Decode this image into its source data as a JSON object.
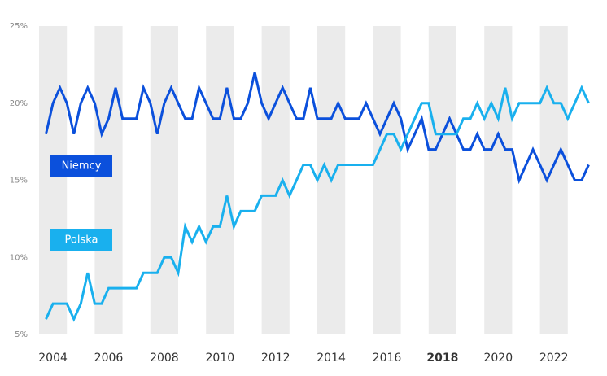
{
  "chart_data": {
    "type": "line",
    "x": [
      2003.75,
      2004,
      2004.25,
      2004.5,
      2004.75,
      2005,
      2005.25,
      2005.5,
      2005.75,
      2006,
      2006.25,
      2006.5,
      2006.75,
      2007,
      2007.25,
      2007.5,
      2007.75,
      2008,
      2008.25,
      2008.5,
      2008.75,
      2009,
      2009.25,
      2009.5,
      2009.75,
      2010,
      2010.25,
      2010.5,
      2010.75,
      2011,
      2011.25,
      2011.5,
      2011.75,
      2012,
      2012.25,
      2012.5,
      2012.75,
      2013,
      2013.25,
      2013.5,
      2013.75,
      2014,
      2014.25,
      2014.5,
      2014.75,
      2015,
      2015.25,
      2015.5,
      2015.75,
      2016,
      2016.25,
      2016.5,
      2016.75,
      2017,
      2017.25,
      2017.5,
      2017.75,
      2018,
      2018.25,
      2018.5,
      2018.75,
      2019,
      2019.25,
      2019.5,
      2019.75,
      2020,
      2020.25,
      2020.5,
      2020.75,
      2021,
      2021.25,
      2021.5,
      2021.75,
      2022,
      2022.25,
      2022.5,
      2022.75,
      2023,
      2023.25
    ],
    "series": [
      {
        "name": "Niemcy",
        "color": "#0b50dc",
        "values": [
          18,
          20,
          21,
          20,
          18,
          20,
          21,
          20,
          18,
          19,
          21,
          19,
          19,
          19,
          21,
          20,
          18,
          20,
          21,
          20,
          19,
          19,
          21,
          20,
          19,
          19,
          21,
          19,
          19,
          20,
          22,
          20,
          19,
          20,
          21,
          20,
          19,
          19,
          21,
          19,
          19,
          19,
          20,
          19,
          19,
          19,
          20,
          19,
          18,
          19,
          20,
          19,
          17,
          18,
          19,
          17,
          17,
          18,
          19,
          18,
          17,
          17,
          18,
          17,
          17,
          18,
          17,
          17,
          15,
          16,
          17,
          16,
          15,
          16,
          17,
          16,
          15,
          15,
          16
        ]
      },
      {
        "name": "Polska",
        "color": "#19b0ee",
        "values": [
          6,
          7,
          7,
          7,
          6,
          7,
          9,
          7,
          7,
          8,
          8,
          8,
          8,
          8,
          9,
          9,
          9,
          10,
          10,
          9,
          12,
          11,
          12,
          11,
          12,
          12,
          14,
          12,
          13,
          13,
          13,
          14,
          14,
          14,
          15,
          14,
          15,
          16,
          16,
          15,
          16,
          15,
          16,
          16,
          16,
          16,
          16,
          16,
          17,
          18,
          18,
          17,
          18,
          19,
          20,
          20,
          18,
          18,
          18,
          18,
          19,
          19,
          20,
          19,
          20,
          19,
          21,
          19,
          20,
          20,
          20,
          20,
          21,
          20,
          20,
          19,
          20,
          21,
          20
        ]
      }
    ],
    "xlim": [
      2003.5,
      2023.5
    ],
    "xticks": [
      2004,
      2006,
      2008,
      2010,
      2012,
      2014,
      2016,
      2018,
      2020,
      2022
    ],
    "ylim": [
      5,
      25
    ],
    "yticks": [
      {
        "value": 5,
        "label": "5%"
      },
      {
        "value": 10,
        "label": "10%"
      },
      {
        "value": 15,
        "label": "15%"
      },
      {
        "value": 20,
        "label": "20%"
      },
      {
        "value": 25,
        "label": "25%"
      }
    ],
    "grid": false
  }
}
